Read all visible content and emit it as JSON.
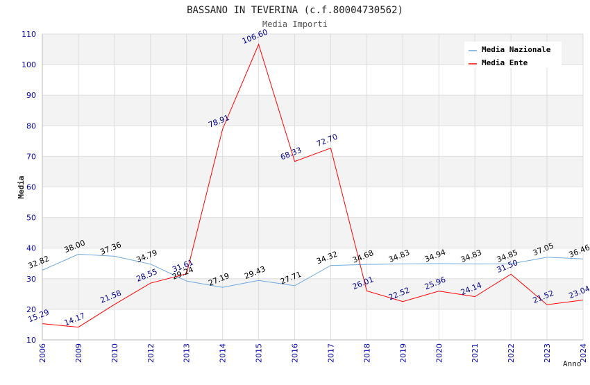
{
  "chart_data": {
    "type": "line",
    "title": "BASSANO IN TEVERINA (c.f.80004730562)",
    "subtitle": "Media Importi",
    "xlabel": "Anno",
    "ylabel": "Media",
    "ylim": [
      10,
      110
    ],
    "yticks": [
      10,
      20,
      30,
      40,
      50,
      60,
      70,
      80,
      90,
      100,
      110
    ],
    "grid": true,
    "legend_position": "top-right",
    "categories": [
      "2006",
      "2009",
      "2010",
      "2012",
      "2013",
      "2014",
      "2015",
      "2016",
      "2017",
      "2018",
      "2019",
      "2020",
      "2021",
      "2022",
      "2023",
      "2024"
    ],
    "series": [
      {
        "name": "Media Nazionale",
        "color": "#6fa8dc",
        "label_color": "#000000",
        "values": [
          32.82,
          38.0,
          37.36,
          34.79,
          29.24,
          27.19,
          29.43,
          27.71,
          34.32,
          34.68,
          34.83,
          34.94,
          34.83,
          34.85,
          37.05,
          36.46
        ],
        "labels": [
          "32.82",
          "38.00",
          "37.36",
          "34.79",
          "29.24",
          "27.19",
          "29.43",
          "27.71",
          "34.32",
          "34.68",
          "34.83",
          "34.94",
          "34.83",
          "34.85",
          "37.05",
          "36.46"
        ]
      },
      {
        "name": "Media Ente",
        "color": "#ff0000",
        "label_color": "#00008b",
        "values": [
          15.29,
          14.17,
          21.58,
          28.55,
          31.61,
          78.91,
          106.6,
          68.33,
          72.7,
          26.01,
          22.52,
          25.96,
          24.14,
          31.5,
          21.52,
          23.04
        ],
        "labels": [
          "15.29",
          "14.17",
          "21.58",
          "28.55",
          "31.61",
          "78.91",
          "106.60",
          "68.33",
          "72.70",
          "26.01",
          "22.52",
          "25.96",
          "24.14",
          "31.50",
          "21.52",
          "23.04"
        ]
      }
    ]
  }
}
